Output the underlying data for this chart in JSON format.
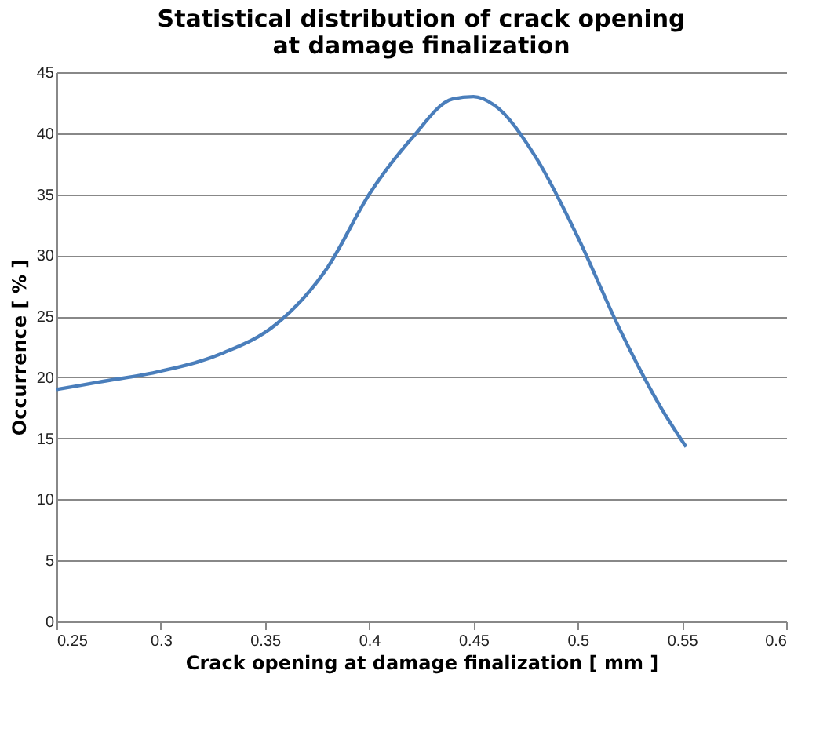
{
  "chart_data": {
    "type": "line",
    "title": "Statistical distribution of crack opening at damage finalization",
    "xlabel": "Crack opening at damage finalization [ mm ]",
    "ylabel": "Occurrence [ % ]",
    "series": [
      {
        "color": "#4a7ebb",
        "x": [
          0.25,
          0.27,
          0.3,
          0.33,
          0.355,
          0.38,
          0.4,
          0.42,
          0.44,
          0.45,
          0.46,
          0.48,
          0.5,
          0.52,
          0.54,
          0.552
        ],
        "values": [
          19,
          19.6,
          20.5,
          22,
          24.3,
          29,
          35,
          39.5,
          42.8,
          43,
          42.3,
          38,
          31.5,
          24,
          17.5,
          14.3
        ]
      }
    ],
    "xlim": [
      0.25,
      0.6
    ],
    "xticks": [
      0.25,
      0.3,
      0.35,
      0.4,
      0.45,
      0.5,
      0.55,
      0.6
    ],
    "ylim": [
      0,
      45
    ],
    "yticks": [
      0,
      5,
      10,
      15,
      20,
      25,
      30,
      35,
      40,
      45
    ],
    "grid": "y",
    "legend": false,
    "marker": "none",
    "line_style": "solid"
  }
}
